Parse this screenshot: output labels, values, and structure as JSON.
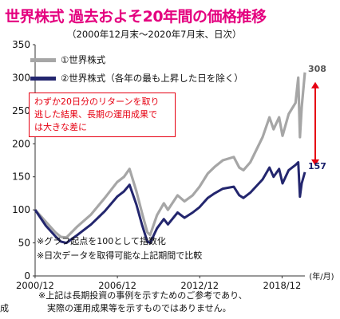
{
  "header": {
    "title": "世界株式 過去およそ20年間の価格推移",
    "subtitle": "（2000年12月末～2020年7月末、日次）"
  },
  "callout": {
    "lines": [
      "わずか20日分のリターンを取り",
      "逃した結果、長期の運用成果で",
      "は大きな差に"
    ]
  },
  "notes": [
    "※グラフ起点を100として指数化",
    "※日次データを取得可能な上記期間で比較"
  ],
  "footer": {
    "lines": [
      "※上記は長期投資の事例を示すためのご参考であり、",
      "　実際の運用成果等を示すものではありません。"
    ],
    "edge_char": "成"
  },
  "colors": {
    "series1": "#a6a6a6",
    "series2": "#23266e",
    "title": "#e4007f",
    "arrow": "#e60012"
  },
  "chart_data": {
    "type": "line",
    "title": "世界株式 過去およそ20年間の価格推移",
    "x_unit": "(年/月)",
    "x_ticks": [
      "2000/12",
      "2006/12",
      "2012/12",
      "2018/12"
    ],
    "xlim": [
      2000.92,
      2020.58
    ],
    "ylim": [
      0,
      350
    ],
    "y_ticks": [
      0,
      50,
      100,
      150,
      200,
      250,
      300,
      350
    ],
    "grid": false,
    "legend_position": "top-left",
    "series": [
      {
        "name": "①世界株式",
        "end_label": "308",
        "x": [
          2000.92,
          2001.7,
          2002.4,
          2002.8,
          2003.2,
          2004.0,
          2005.0,
          2006.0,
          2006.9,
          2007.4,
          2007.8,
          2008.3,
          2008.7,
          2009.1,
          2009.3,
          2009.8,
          2010.3,
          2010.6,
          2011.3,
          2011.8,
          2012.4,
          2012.9,
          2013.5,
          2014.0,
          2014.6,
          2015.4,
          2015.8,
          2016.1,
          2016.6,
          2017.5,
          2018.0,
          2018.3,
          2018.7,
          2018.95,
          2019.4,
          2019.9,
          2020.1,
          2020.22,
          2020.35,
          2020.58
        ],
        "y": [
          100,
          82,
          66,
          59,
          58,
          75,
          93,
          118,
          142,
          150,
          162,
          128,
          96,
          66,
          62,
          92,
          110,
          100,
          122,
          113,
          122,
          135,
          155,
          165,
          175,
          180,
          164,
          160,
          172,
          210,
          240,
          222,
          240,
          212,
          245,
          262,
          300,
          210,
          255,
          308
        ]
      },
      {
        "name": "②世界株式（各年の最も上昇した日を除く）",
        "end_label": "157",
        "x": [
          2000.92,
          2001.7,
          2002.4,
          2002.8,
          2003.2,
          2004.0,
          2005.0,
          2006.0,
          2006.9,
          2007.4,
          2007.8,
          2008.3,
          2008.7,
          2009.1,
          2009.3,
          2009.8,
          2010.3,
          2010.6,
          2011.3,
          2011.8,
          2012.4,
          2012.9,
          2013.5,
          2014.0,
          2014.6,
          2015.4,
          2015.8,
          2016.1,
          2016.6,
          2017.5,
          2018.0,
          2018.3,
          2018.7,
          2018.95,
          2019.4,
          2019.9,
          2020.1,
          2020.22,
          2020.35,
          2020.58
        ],
        "y": [
          100,
          76,
          60,
          52,
          50,
          62,
          78,
          98,
          120,
          128,
          138,
          108,
          78,
          52,
          50,
          72,
          86,
          78,
          96,
          88,
          96,
          104,
          118,
          125,
          132,
          135,
          122,
          118,
          126,
          146,
          164,
          150,
          162,
          140,
          160,
          168,
          172,
          120,
          140,
          157
        ]
      }
    ]
  }
}
